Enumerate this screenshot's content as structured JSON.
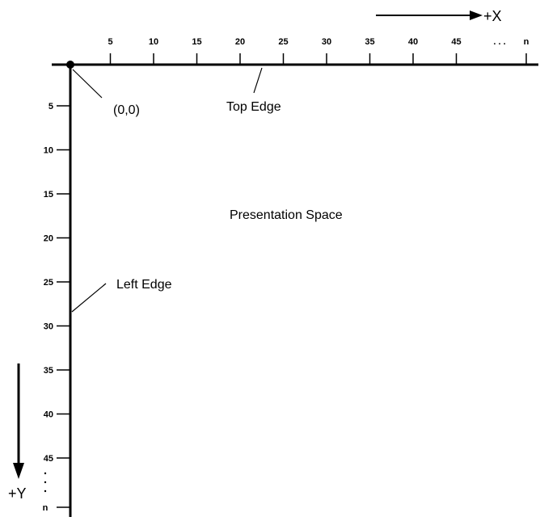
{
  "diagram": {
    "x_axis": {
      "direction_label": "+X",
      "ticks": [
        "5",
        "10",
        "15",
        "20",
        "25",
        "30",
        "35",
        "40",
        "45"
      ],
      "ellipsis": ". . .",
      "end_label": "n"
    },
    "y_axis": {
      "direction_label": "+Y",
      "ticks": [
        "5",
        "10",
        "15",
        "20",
        "25",
        "30",
        "35",
        "40",
        "45"
      ],
      "end_label": "n"
    },
    "origin_label": "(0,0)",
    "top_edge_label": "Top Edge",
    "left_edge_label": "Left Edge",
    "area_label": "Presentation Space"
  }
}
